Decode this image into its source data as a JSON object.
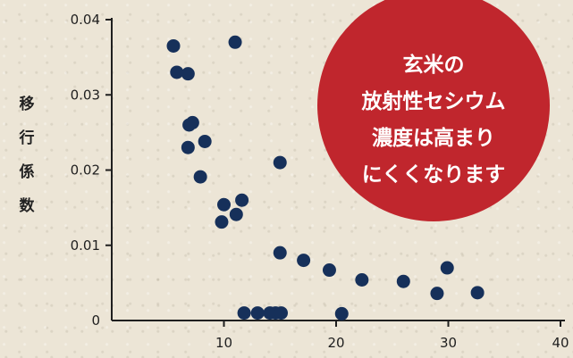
{
  "chart_data": {
    "type": "scatter",
    "ylabel": "移行係数",
    "xlim": [
      0,
      40
    ],
    "ylim": [
      0,
      0.04
    ],
    "x_ticks": [
      10,
      20,
      30,
      40
    ],
    "x_tick_labels": [
      "10",
      "20",
      "30",
      "40"
    ],
    "y_ticks": [
      0,
      0.01,
      0.02,
      0.03,
      0.04
    ],
    "y_tick_labels": [
      "0",
      "0.01",
      "0.02",
      "0.03",
      "0.04"
    ],
    "grid": false,
    "point_color": "#16305a",
    "points": [
      {
        "x": 5.5,
        "y": 0.0365
      },
      {
        "x": 5.8,
        "y": 0.033
      },
      {
        "x": 6.8,
        "y": 0.0328
      },
      {
        "x": 6.9,
        "y": 0.026
      },
      {
        "x": 7.2,
        "y": 0.0263
      },
      {
        "x": 6.8,
        "y": 0.023
      },
      {
        "x": 8.3,
        "y": 0.0238
      },
      {
        "x": 7.9,
        "y": 0.0191
      },
      {
        "x": 11.0,
        "y": 0.037
      },
      {
        "x": 15.0,
        "y": 0.021
      },
      {
        "x": 10.0,
        "y": 0.0154
      },
      {
        "x": 11.6,
        "y": 0.016
      },
      {
        "x": 11.1,
        "y": 0.0141
      },
      {
        "x": 9.8,
        "y": 0.0131
      },
      {
        "x": 15.0,
        "y": 0.009
      },
      {
        "x": 17.1,
        "y": 0.008
      },
      {
        "x": 19.4,
        "y": 0.0067
      },
      {
        "x": 22.3,
        "y": 0.0054
      },
      {
        "x": 26.0,
        "y": 0.0052
      },
      {
        "x": 29.9,
        "y": 0.007
      },
      {
        "x": 29.0,
        "y": 0.0036
      },
      {
        "x": 32.6,
        "y": 0.0037
      },
      {
        "x": 11.8,
        "y": 0.001
      },
      {
        "x": 13.0,
        "y": 0.001
      },
      {
        "x": 14.1,
        "y": 0.001
      },
      {
        "x": 14.6,
        "y": 0.001
      },
      {
        "x": 15.1,
        "y": 0.001
      },
      {
        "x": 20.5,
        "y": 0.0009
      }
    ]
  },
  "callout": {
    "lines": [
      "玄米の",
      "放射性セシウム",
      "濃度は高まり",
      "にくくなります"
    ],
    "color": "#c0262d",
    "arrow_color": "#7f2a2d"
  },
  "colors": {
    "axis": "#1f1f1f"
  }
}
